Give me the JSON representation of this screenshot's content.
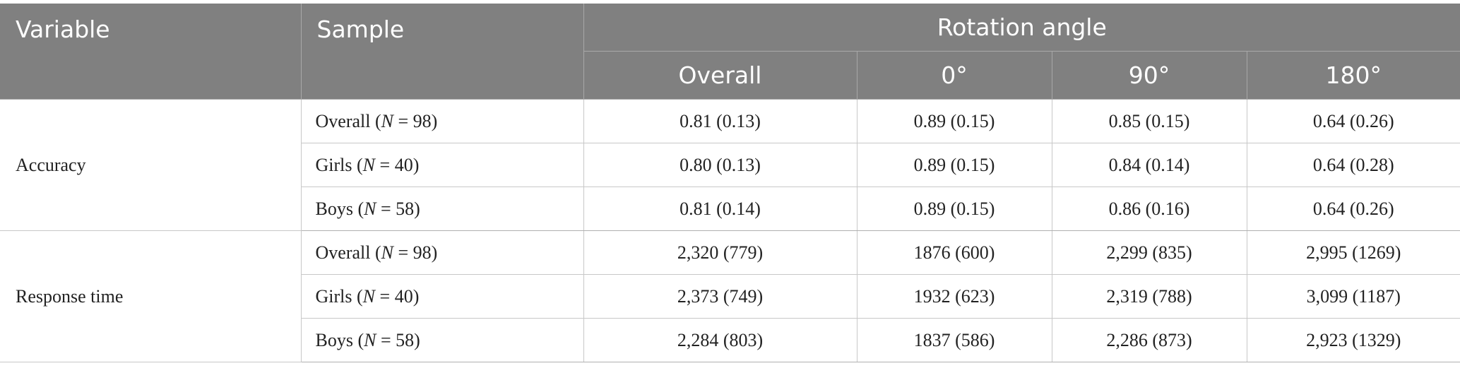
{
  "header": {
    "variable": "Variable",
    "sample": "Sample",
    "rotation_angle": "Rotation angle",
    "columns": [
      "Overall",
      "0°",
      "90°",
      "180°"
    ]
  },
  "groups": [
    {
      "variable": "Accuracy",
      "rows": [
        {
          "label": "Overall",
          "n": "98",
          "values": [
            "0.81 (0.13)",
            "0.89 (0.15)",
            "0.85 (0.15)",
            "0.64 (0.26)"
          ]
        },
        {
          "label": "Girls",
          "n": "40",
          "values": [
            "0.80 (0.13)",
            "0.89 (0.15)",
            "0.84 (0.14)",
            "0.64 (0.28)"
          ]
        },
        {
          "label": "Boys",
          "n": "58",
          "values": [
            "0.81 (0.14)",
            "0.89 (0.15)",
            "0.86 (0.16)",
            "0.64 (0.26)"
          ]
        }
      ]
    },
    {
      "variable": "Response time",
      "rows": [
        {
          "label": "Overall",
          "n": "98",
          "values": [
            "2,320 (779)",
            "1876 (600)",
            "2,299 (835)",
            "2,995 (1269)"
          ]
        },
        {
          "label": "Girls",
          "n": "40",
          "values": [
            "2,373 (749)",
            "1932 (623)",
            "2,319 (788)",
            "3,099 (1187)"
          ]
        },
        {
          "label": "Boys",
          "n": "58",
          "values": [
            "2,284 (803)",
            "1837 (586)",
            "2,286 (873)",
            "2,923 (1329)"
          ]
        }
      ]
    }
  ],
  "n_symbol": "N"
}
